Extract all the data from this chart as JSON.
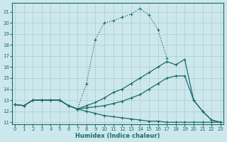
{
  "xlabel": "Humidex (Indice chaleur)",
  "bg_color": "#cde8ec",
  "line_color": "#1a6b6b",
  "grid_color": "#aacccc",
  "xlim": [
    -0.3,
    23.3
  ],
  "ylim": [
    10.8,
    21.8
  ],
  "yticks": [
    11,
    12,
    13,
    14,
    15,
    16,
    17,
    18,
    19,
    20,
    21
  ],
  "xticks": [
    0,
    1,
    2,
    3,
    4,
    5,
    6,
    7,
    8,
    9,
    10,
    11,
    12,
    13,
    14,
    15,
    16,
    17,
    18,
    19,
    20,
    21,
    22,
    23
  ],
  "curves": [
    {
      "x": [
        0,
        1,
        2,
        3,
        4,
        5,
        6,
        7,
        8,
        9,
        10,
        11,
        12,
        13,
        14,
        15,
        16,
        17
      ],
      "y": [
        12.6,
        12.5,
        13.0,
        13.0,
        13.0,
        13.0,
        12.5,
        12.2,
        14.5,
        18.5,
        20.0,
        20.2,
        20.5,
        20.8,
        21.3,
        20.7,
        19.4,
        16.8
      ],
      "linestyle": ":"
    },
    {
      "x": [
        0,
        1,
        2,
        3,
        4,
        5,
        6,
        7,
        8,
        9,
        10,
        11,
        12,
        13,
        14,
        15,
        16,
        17,
        18,
        19,
        20,
        21,
        22,
        23
      ],
      "y": [
        12.6,
        12.5,
        13.0,
        13.0,
        13.0,
        13.0,
        12.5,
        12.2,
        12.5,
        12.8,
        13.2,
        13.7,
        14.0,
        14.5,
        15.0,
        15.5,
        16.0,
        16.5,
        16.2,
        16.7,
        13.0,
        12.0,
        11.2,
        11.0
      ],
      "linestyle": "-"
    },
    {
      "x": [
        0,
        1,
        2,
        3,
        4,
        5,
        6,
        7,
        8,
        9,
        10,
        11,
        12,
        13,
        14,
        15,
        16,
        17,
        18,
        19,
        20,
        21,
        22,
        23
      ],
      "y": [
        12.6,
        12.5,
        13.0,
        13.0,
        13.0,
        13.0,
        12.5,
        12.2,
        12.3,
        12.4,
        12.5,
        12.7,
        12.9,
        13.2,
        13.5,
        14.0,
        14.5,
        15.0,
        15.2,
        15.2,
        13.0,
        12.0,
        11.2,
        11.0
      ],
      "linestyle": "-"
    },
    {
      "x": [
        0,
        1,
        2,
        3,
        4,
        5,
        6,
        7,
        8,
        9,
        10,
        11,
        12,
        13,
        14,
        15,
        16,
        17,
        18,
        19,
        20,
        21,
        22,
        23
      ],
      "y": [
        12.6,
        12.5,
        13.0,
        13.0,
        13.0,
        13.0,
        12.5,
        12.2,
        12.0,
        11.8,
        11.6,
        11.5,
        11.4,
        11.3,
        11.2,
        11.1,
        11.1,
        11.0,
        11.0,
        11.0,
        11.0,
        11.0,
        11.0,
        11.0
      ],
      "linestyle": "-"
    }
  ]
}
